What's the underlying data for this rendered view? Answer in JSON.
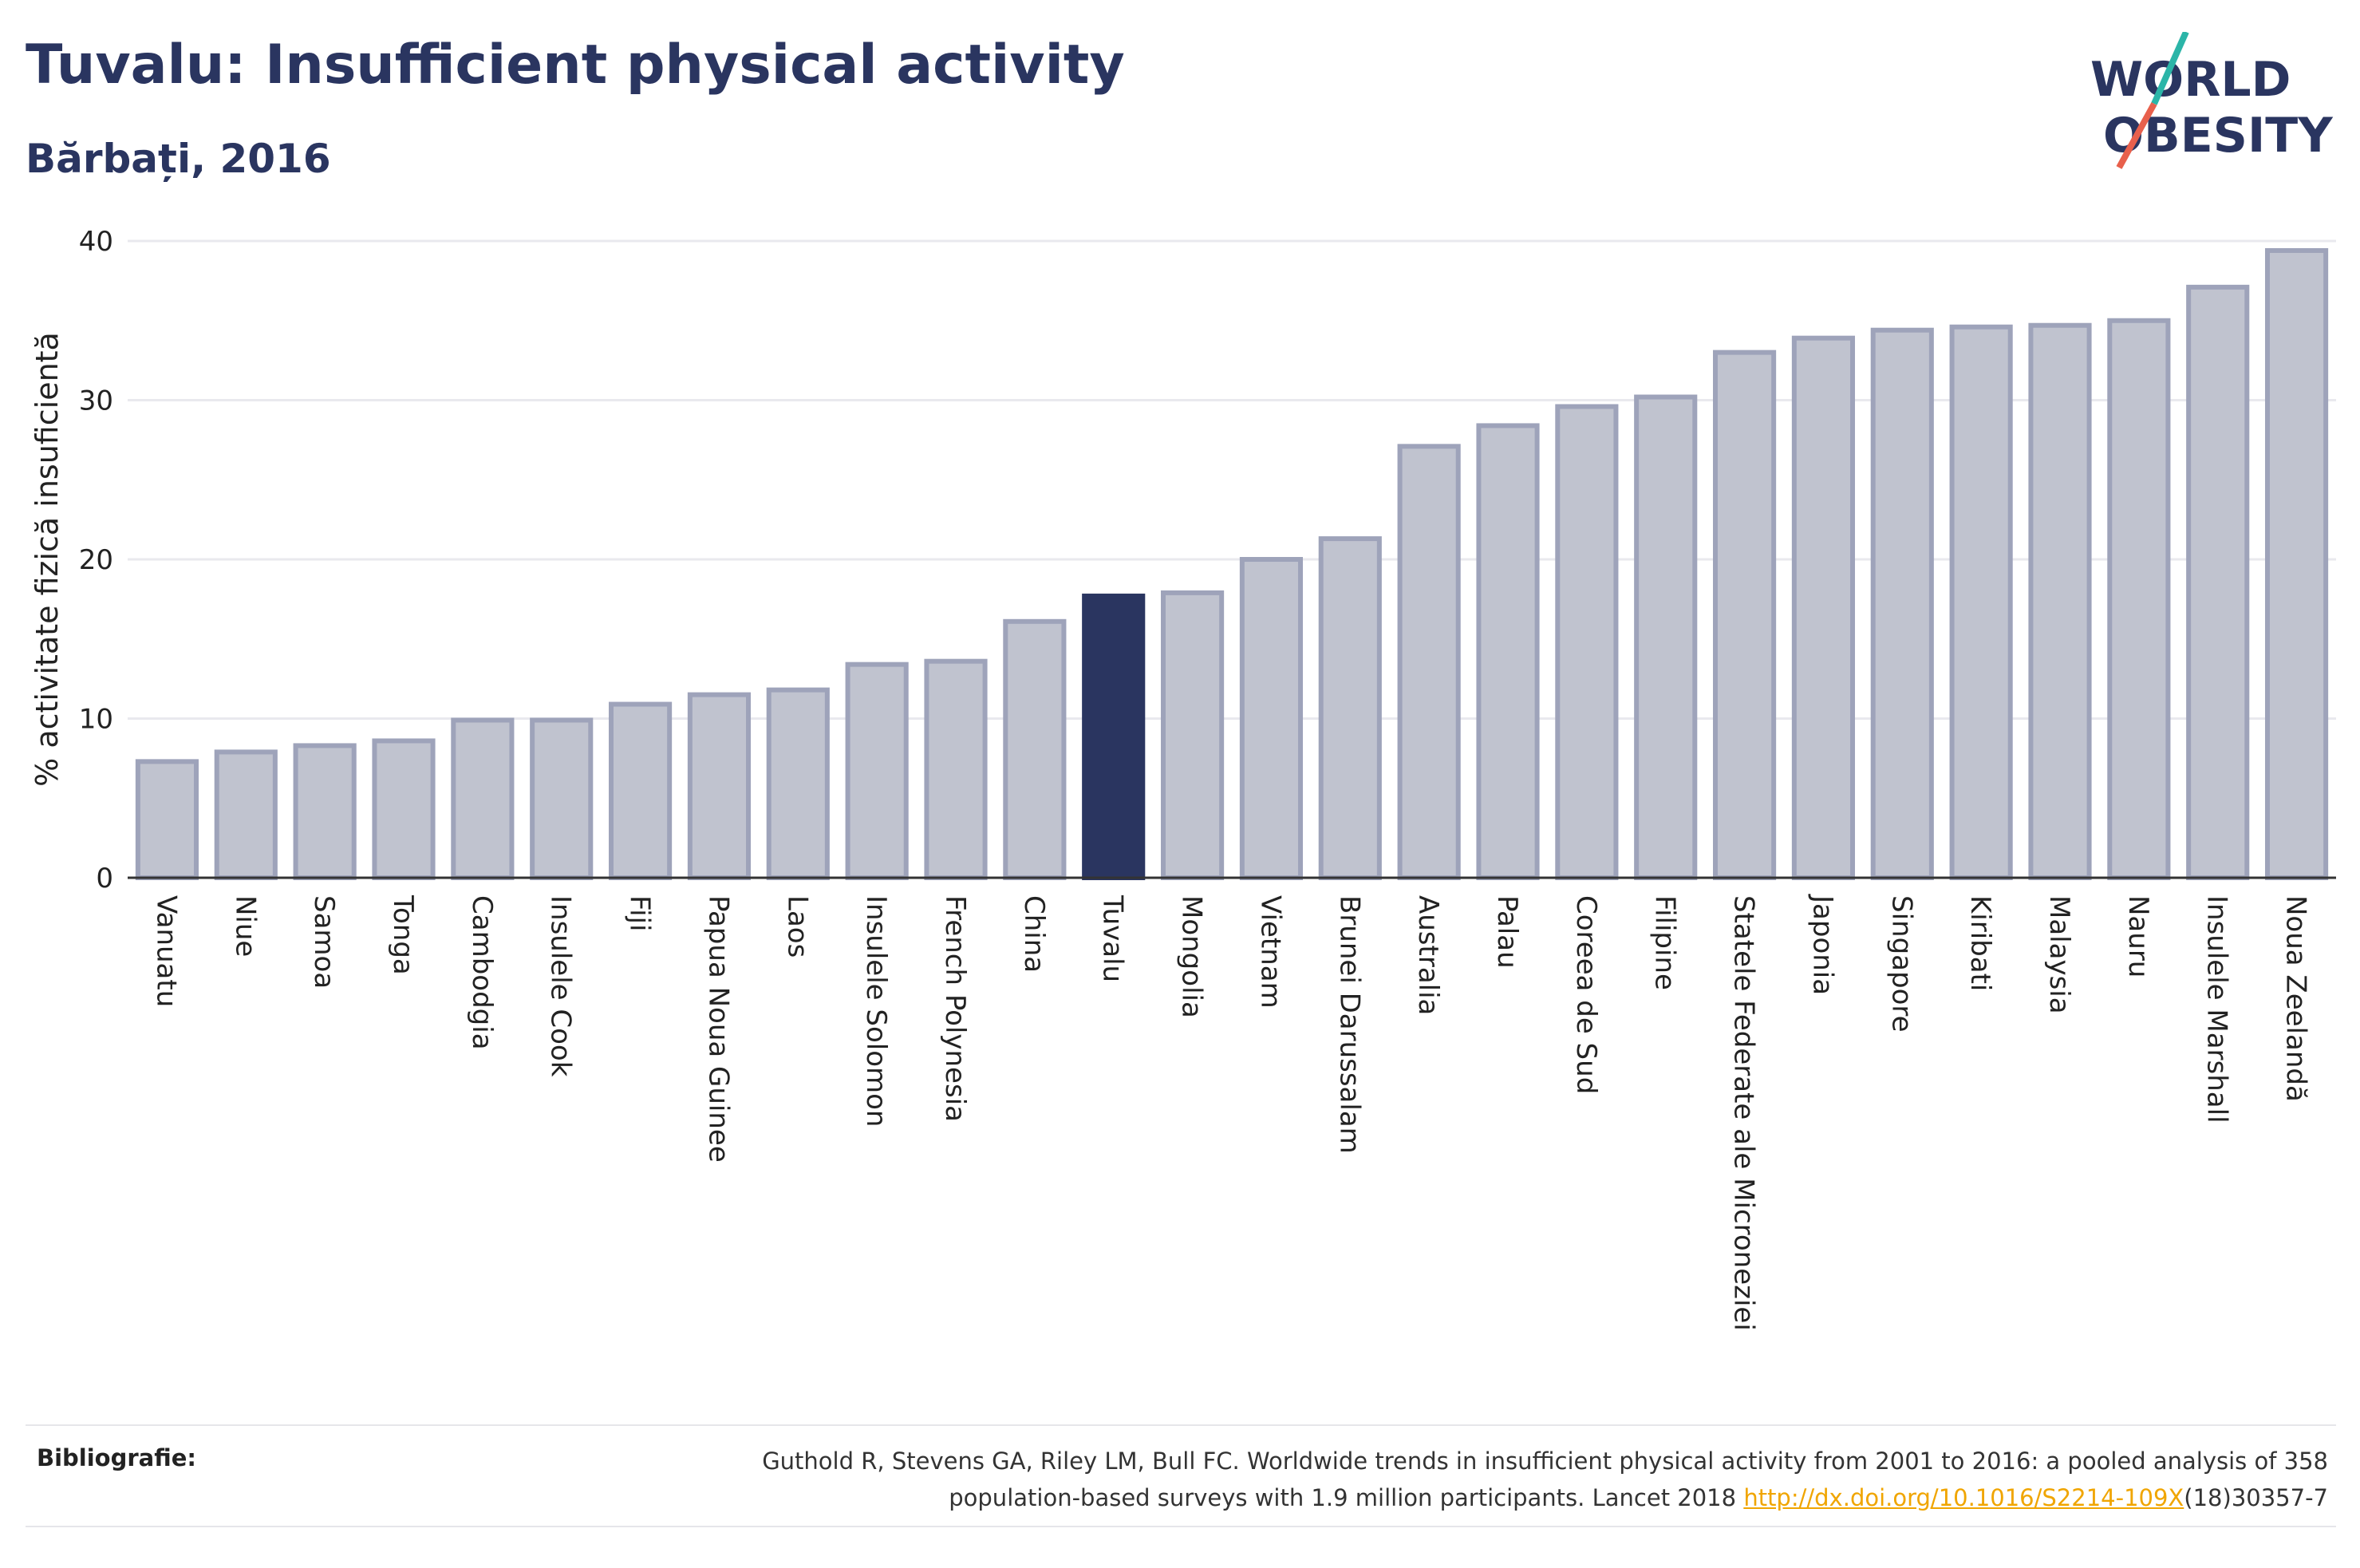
{
  "header": {
    "title": "Tuvalu: Insufficient physical activity",
    "subtitle": "Bărbați, 2016"
  },
  "logo": {
    "line1": "WORLD",
    "line2": "OBESITY",
    "accent_teal": "#2bb5a8",
    "accent_red": "#e8604c",
    "text_color": "#2a3560"
  },
  "chart_data": {
    "type": "bar",
    "ylabel": "% activitate fizică insuficientă",
    "xlabel": "",
    "ylim": [
      0,
      40
    ],
    "yticks": [
      0,
      10,
      20,
      30,
      40
    ],
    "grid": true,
    "highlight": "Tuvalu",
    "colors": {
      "bar": "#c0c3cf",
      "bar_border": "#9ea3ba",
      "highlight": "#2a3560"
    },
    "categories": [
      "Vanuatu",
      "Niue",
      "Samoa",
      "Tonga",
      "Cambodgia",
      "Insulele Cook",
      "Fiji",
      "Papua Noua Guinee",
      "Laos",
      "Insulele Solomon",
      "French Polynesia",
      "China",
      "Tuvalu",
      "Mongolia",
      "Vietnam",
      "Brunei Darussalam",
      "Australia",
      "Palau",
      "Coreea de Sud",
      "Filipine",
      "Statele Federate ale Microneziei",
      "Japonia",
      "Singapore",
      "Kiribati",
      "Malaysia",
      "Nauru",
      "Insulele Marshall",
      "Noua Zeelandă"
    ],
    "values": [
      7.3,
      7.9,
      8.3,
      8.6,
      9.9,
      9.9,
      10.9,
      11.5,
      11.8,
      13.4,
      13.6,
      16.1,
      17.7,
      17.9,
      20.0,
      21.3,
      27.1,
      28.4,
      29.6,
      30.2,
      33.0,
      33.9,
      34.4,
      34.6,
      34.7,
      35.0,
      37.1,
      39.4
    ]
  },
  "footer": {
    "label": "Bibliografie:",
    "citation_line1": "Guthold R, Stevens GA, Riley LM, Bull FC. Worldwide trends in insufficient physical activity from 2001 to 2016: a pooled analysis of 358",
    "citation_line2_pre": "population-based surveys with 1.9 million participants. Lancet 2018 ",
    "citation_link": "http://dx.doi.org/10.1016/S2214-109X",
    "citation_line2_post": "(18)30357-7"
  }
}
